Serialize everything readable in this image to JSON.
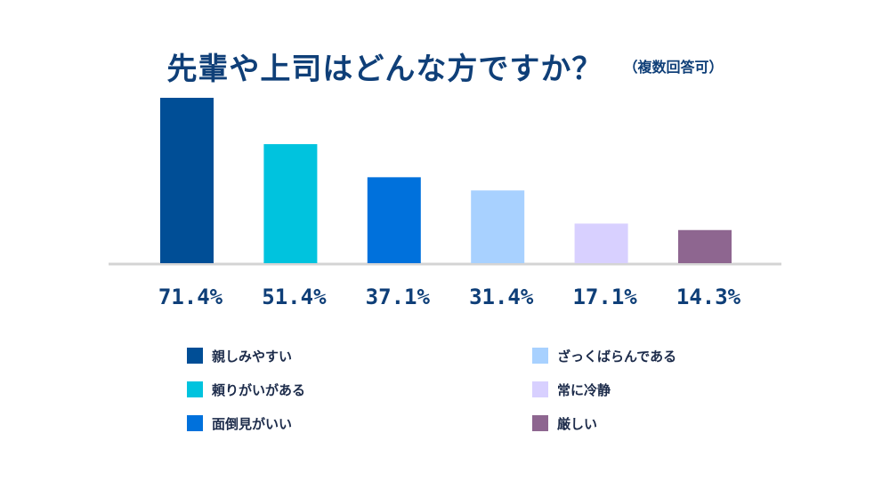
{
  "title": "先輩や上司はどんな方ですか？",
  "title_note": "（複数回答可）",
  "chart_data": {
    "type": "bar",
    "title": "先輩や上司はどんな方ですか？",
    "subtitle": "（複数回答可）",
    "categories": [
      "親しみやすい",
      "頼りがいがある",
      "面倒見がいい",
      "ざっくばらんである",
      "常に冷静",
      "厳しい"
    ],
    "values": [
      71.4,
      51.4,
      37.1,
      31.4,
      17.1,
      14.3
    ],
    "value_labels": [
      "71.4%",
      "51.4%",
      "37.1%",
      "31.4%",
      "17.1%",
      "14.3%"
    ],
    "colors": [
      "#004e96",
      "#00c3de",
      "#0071dc",
      "#a8d1ff",
      "#d8d0ff",
      "#8e6690"
    ],
    "ylim": [
      0,
      71.4
    ],
    "grid": false,
    "legend_position": "bottom"
  }
}
